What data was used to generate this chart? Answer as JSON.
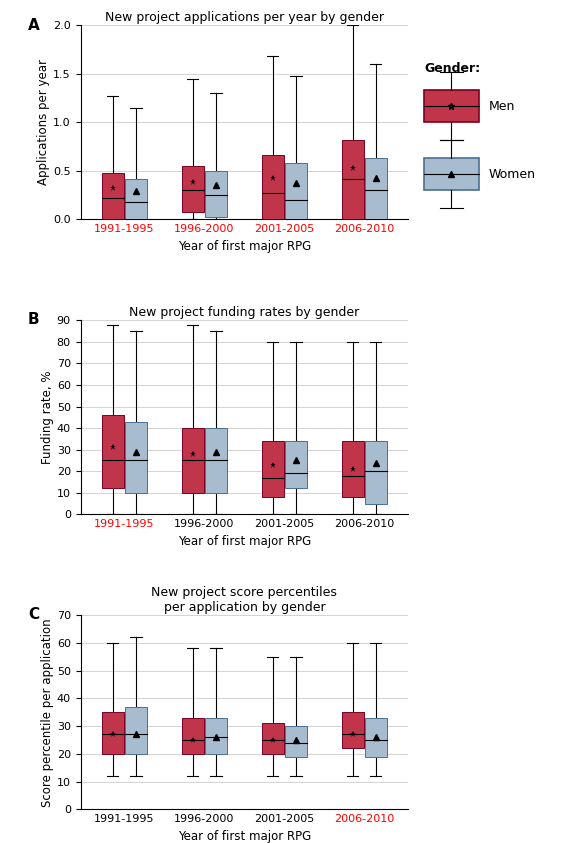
{
  "panel_A": {
    "title": "New project applications per year by gender",
    "ylabel": "Applications per year",
    "xlabel": "Year of first major RPG",
    "ylim": [
      0,
      2.0
    ],
    "yticks": [
      0.0,
      0.5,
      1.0,
      1.5,
      2.0
    ],
    "red_xtick_indices": [
      0,
      1,
      2,
      3
    ],
    "cohorts": [
      "1991-1995",
      "1996-2000",
      "2001-2005",
      "2006-2010"
    ],
    "men": {
      "whisker_low": [
        0.0,
        0.0,
        0.0,
        0.0
      ],
      "q1": [
        0.0,
        0.08,
        0.0,
        0.0
      ],
      "median": [
        0.22,
        0.3,
        0.27,
        0.42
      ],
      "q3": [
        0.48,
        0.55,
        0.66,
        0.82
      ],
      "whisker_high": [
        1.27,
        1.45,
        1.68,
        2.0
      ],
      "mean": [
        0.32,
        0.38,
        0.43,
        0.53
      ]
    },
    "women": {
      "whisker_low": [
        0.0,
        0.0,
        0.0,
        0.0
      ],
      "q1": [
        0.0,
        0.02,
        0.0,
        0.0
      ],
      "median": [
        0.18,
        0.25,
        0.2,
        0.3
      ],
      "q3": [
        0.42,
        0.5,
        0.58,
        0.63
      ],
      "whisker_high": [
        1.15,
        1.3,
        1.48,
        1.6
      ],
      "mean": [
        0.29,
        0.35,
        0.37,
        0.43
      ]
    }
  },
  "panel_B": {
    "title": "New project funding rates by gender",
    "ylabel": "Funding rate, %",
    "xlabel": "Year of first major RPG",
    "ylim": [
      0,
      90
    ],
    "yticks": [
      0,
      10,
      20,
      30,
      40,
      50,
      60,
      70,
      80,
      90
    ],
    "red_xtick_indices": [
      0
    ],
    "cohorts": [
      "1991-1995",
      "1996-2000",
      "2001-2005",
      "2006-2010"
    ],
    "men": {
      "whisker_low": [
        0,
        0,
        0,
        0
      ],
      "q1": [
        12,
        10,
        8,
        8
      ],
      "median": [
        25,
        25,
        17,
        18
      ],
      "q3": [
        46,
        40,
        34,
        34
      ],
      "whisker_high": [
        88,
        88,
        80,
        80
      ],
      "mean": [
        31,
        28,
        23,
        21
      ]
    },
    "women": {
      "whisker_low": [
        0,
        0,
        0,
        0
      ],
      "q1": [
        10,
        10,
        12,
        5
      ],
      "median": [
        25,
        25,
        19,
        20
      ],
      "q3": [
        43,
        40,
        34,
        34
      ],
      "whisker_high": [
        85,
        85,
        80,
        80
      ],
      "mean": [
        29,
        29,
        25,
        24
      ]
    }
  },
  "panel_C": {
    "title": "New project score percentiles\nper application by gender",
    "ylabel": "Score percentile per application",
    "xlabel": "Year of first major RPG",
    "ylim": [
      0,
      70
    ],
    "yticks": [
      0,
      10,
      20,
      30,
      40,
      50,
      60,
      70
    ],
    "red_xtick_indices": [
      3
    ],
    "cohorts": [
      "1991-1995",
      "1996-2000",
      "2001-2005",
      "2006-2010"
    ],
    "men": {
      "whisker_low": [
        12,
        12,
        12,
        12
      ],
      "q1": [
        20,
        20,
        20,
        22
      ],
      "median": [
        27,
        25,
        25,
        27
      ],
      "q3": [
        35,
        33,
        31,
        35
      ],
      "whisker_high": [
        60,
        58,
        55,
        60
      ],
      "mean": [
        27,
        25,
        25,
        27
      ]
    },
    "women": {
      "whisker_low": [
        12,
        12,
        12,
        12
      ],
      "q1": [
        20,
        20,
        19,
        19
      ],
      "median": [
        27,
        26,
        24,
        25
      ],
      "q3": [
        37,
        33,
        30,
        33
      ],
      "whisker_high": [
        62,
        58,
        55,
        60
      ],
      "mean": [
        27,
        26,
        25,
        26
      ]
    }
  },
  "men_color": "#c0354a",
  "women_color": "#a8bccf",
  "men_edge": "#7a0020",
  "women_edge": "#4a7090",
  "panel_labels": [
    "A",
    "B",
    "C"
  ],
  "legend_title": "Gender:",
  "legend_men": "Men",
  "legend_women": "Women"
}
